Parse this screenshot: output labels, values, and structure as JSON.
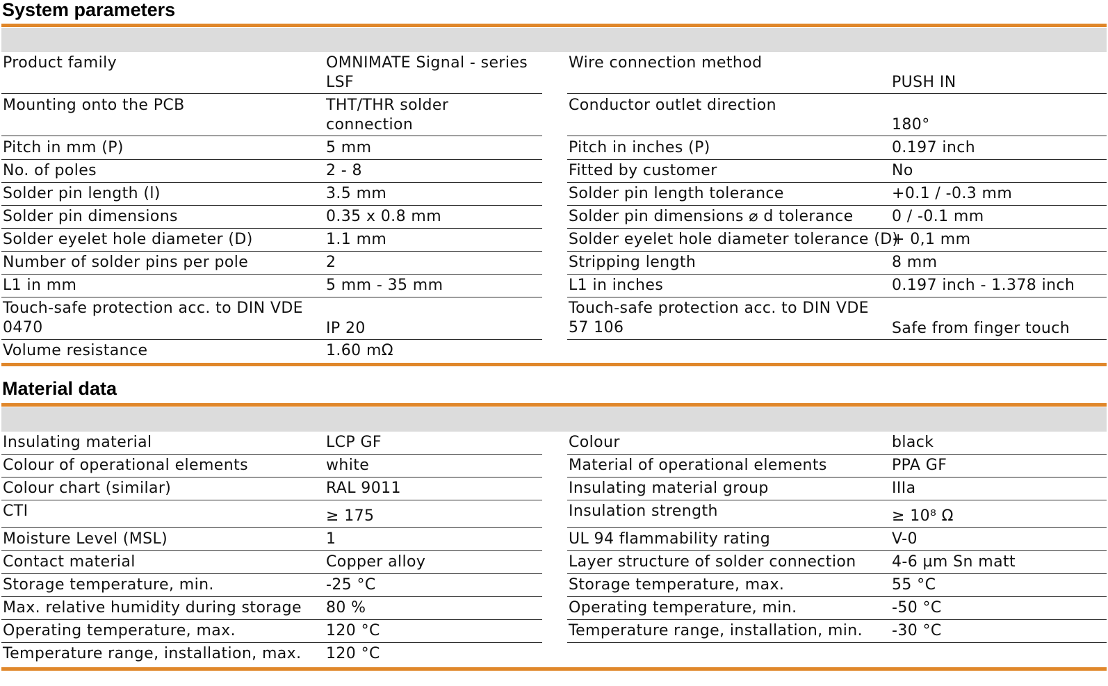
{
  "system": {
    "title": "System parameters",
    "left": [
      {
        "label": "Product family",
        "value": "OMNIMATE Signal - series LSF"
      },
      {
        "label": "Mounting onto the PCB",
        "value": "THT/THR solder connection"
      },
      {
        "label": "Pitch in mm (P)",
        "value": "5 mm"
      },
      {
        "label": "No. of poles",
        "value": "2 - 8"
      },
      {
        "label": "Solder pin length (l)",
        "value": "3.5 mm"
      },
      {
        "label": "Solder pin dimensions",
        "value": "0.35 x 0.8 mm"
      },
      {
        "label": "Solder eyelet hole diameter (D)",
        "value": "1.1 mm"
      },
      {
        "label": "Number of solder pins per pole",
        "value": "2"
      },
      {
        "label": "L1 in mm",
        "value": "5 mm - 35 mm"
      },
      {
        "label": "Touch-safe protection acc. to DIN VDE 0470",
        "value": "IP 20"
      },
      {
        "label": "Volume resistance",
        "value": "1.60 mΩ"
      }
    ],
    "right": [
      {
        "label": "Wire connection method",
        "value": "PUSH IN"
      },
      {
        "label": "Conductor outlet direction",
        "value": "180°"
      },
      {
        "label": "Pitch in inches (P)",
        "value": "0.197 inch"
      },
      {
        "label": "Fitted by customer",
        "value": "No"
      },
      {
        "label": "Solder pin length tolerance",
        "value": "+0.1 / -0.3 mm"
      },
      {
        "label": "Solder pin dimensions ⌀ d tolerance",
        "value": "0 / -0.1 mm"
      },
      {
        "label": "Solder eyelet hole diameter tolerance (D)",
        "value": "+ 0,1 mm"
      },
      {
        "label": "Stripping length",
        "value": "8 mm"
      },
      {
        "label": "L1 in inches",
        "value": "0.197 inch - 1.378 inch"
      },
      {
        "label": "Touch-safe protection acc. to DIN VDE 57 106",
        "value": "Safe from finger touch"
      }
    ]
  },
  "material": {
    "title": "Material data",
    "left": [
      {
        "label": "Insulating material",
        "value": "LCP GF"
      },
      {
        "label": "Colour of operational elements",
        "value": "white"
      },
      {
        "label": "Colour chart (similar)",
        "value": "RAL 9011"
      },
      {
        "label": "CTI",
        "value": "≥ 175"
      },
      {
        "label": "Moisture Level (MSL)",
        "value": "1"
      },
      {
        "label": "Contact material",
        "value": "Copper alloy"
      },
      {
        "label": "Storage temperature, min.",
        "value": "-25 °C"
      },
      {
        "label": "Max. relative humidity during storage",
        "value": "80 %"
      },
      {
        "label": "Operating temperature, max.",
        "value": "120 °C"
      },
      {
        "label": "Temperature range, installation, max.",
        "value": "120 °C"
      }
    ],
    "right": [
      {
        "label": "Colour",
        "value": "black"
      },
      {
        "label": "Material of operational elements",
        "value": "PPA GF"
      },
      {
        "label": "Insulating material group",
        "value": "IIIa"
      },
      {
        "label": "Insulation strength",
        "value": "≥ 10⁸ Ω"
      },
      {
        "label": "UL 94 flammability rating",
        "value": "V-0"
      },
      {
        "label": "Layer structure of solder connection",
        "value": "4-6 µm Sn matt"
      },
      {
        "label": "Storage temperature, max.",
        "value": "55 °C"
      },
      {
        "label": "Operating temperature, min.",
        "value": "-50 °C"
      },
      {
        "label": "Temperature range, installation, min.",
        "value": "-30 °C"
      }
    ]
  }
}
